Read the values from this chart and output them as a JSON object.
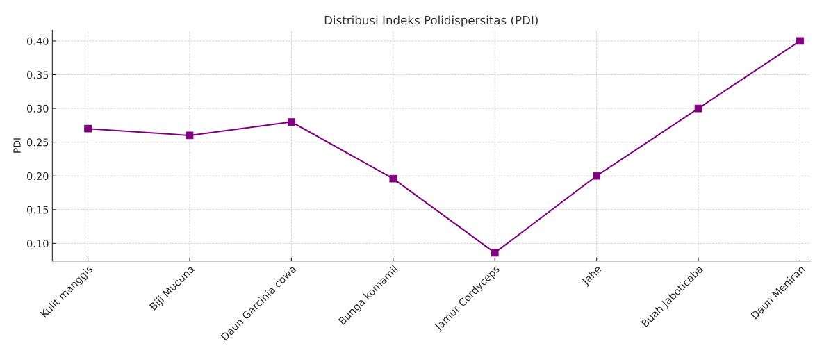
{
  "chart_data": {
    "type": "line",
    "title": "Distribusi Indeks Polidispersitas (PDI)",
    "ylabel": "PDI",
    "categories": [
      "Kulit manggis",
      "Biji Mucuna",
      "Daun Garcinia cowa",
      "Bunga komamil",
      "Jamur Cordyceps",
      "Jahe",
      "Buah Jaboticaba",
      "Daun Meniran"
    ],
    "series": [
      {
        "color": "#800080",
        "values": [
          0.27,
          0.26,
          0.28,
          0.196,
          0.086,
          0.2,
          0.3,
          0.4
        ]
      }
    ],
    "ylim": [
      0.074,
      0.416
    ],
    "yticks": [
      {
        "value": 0.1,
        "label": "0.10"
      },
      {
        "value": 0.15,
        "label": "0.15"
      },
      {
        "value": 0.2,
        "label": "0.20"
      },
      {
        "value": 0.25,
        "label": "0.25"
      },
      {
        "value": 0.3,
        "label": "0.30"
      },
      {
        "value": 0.35,
        "label": "0.35"
      },
      {
        "value": 0.4,
        "label": "0.40"
      }
    ],
    "grid": true,
    "marker": "square",
    "line_style": "solid"
  }
}
